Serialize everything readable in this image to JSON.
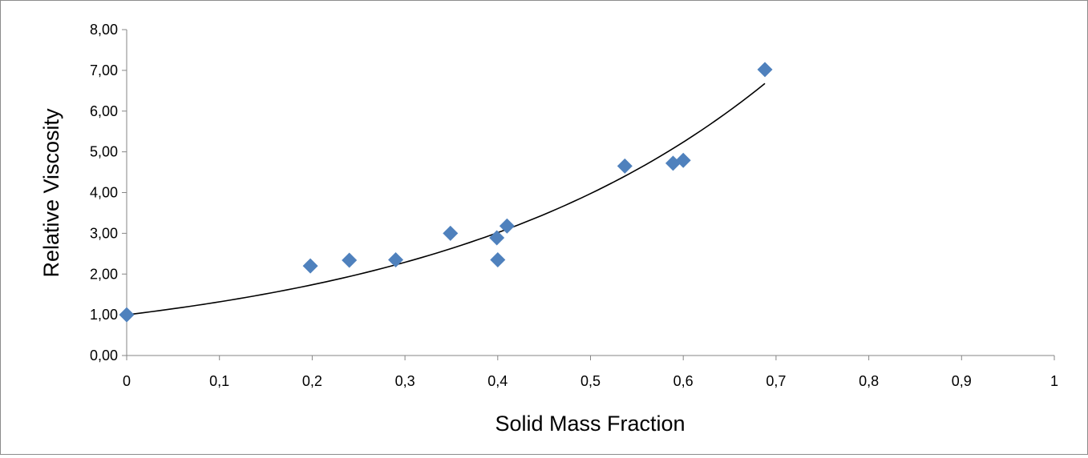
{
  "chart_data": {
    "type": "scatter",
    "title": "",
    "xlabel": "Solid Mass Fraction",
    "ylabel": "Relative Viscosity",
    "xlim": [
      0,
      1
    ],
    "ylim": [
      0,
      8
    ],
    "x_ticks": [
      0,
      0.1,
      0.2,
      0.3,
      0.4,
      0.5,
      0.6,
      0.7,
      0.8,
      0.9,
      1
    ],
    "x_tick_labels": [
      "0",
      "0,1",
      "0,2",
      "0,3",
      "0,4",
      "0,5",
      "0,6",
      "0,7",
      "0,8",
      "0,9",
      "1"
    ],
    "y_ticks": [
      0,
      1,
      2,
      3,
      4,
      5,
      6,
      7,
      8
    ],
    "y_tick_labels": [
      "0,00",
      "1,00",
      "2,00",
      "3,00",
      "4,00",
      "5,00",
      "6,00",
      "7,00",
      "8,00"
    ],
    "grid": false,
    "legend": "none",
    "series": [
      {
        "points": [
          [
            0,
            1.0
          ],
          [
            0.198,
            2.2
          ],
          [
            0.24,
            2.34
          ],
          [
            0.29,
            2.35
          ],
          [
            0.349,
            3.0
          ],
          [
            0.399,
            2.89
          ],
          [
            0.4,
            2.35
          ],
          [
            0.41,
            3.18
          ],
          [
            0.537,
            4.65
          ],
          [
            0.589,
            4.72
          ],
          [
            0.6,
            4.79
          ],
          [
            0.688,
            7.02
          ]
        ],
        "marker": "diamond",
        "color": "#4f81bd"
      }
    ],
    "trendline": {
      "type": "exponential",
      "a": 1.0,
      "b": 2.76,
      "x_range": [
        0,
        0.688
      ],
      "color": "#000000"
    }
  }
}
